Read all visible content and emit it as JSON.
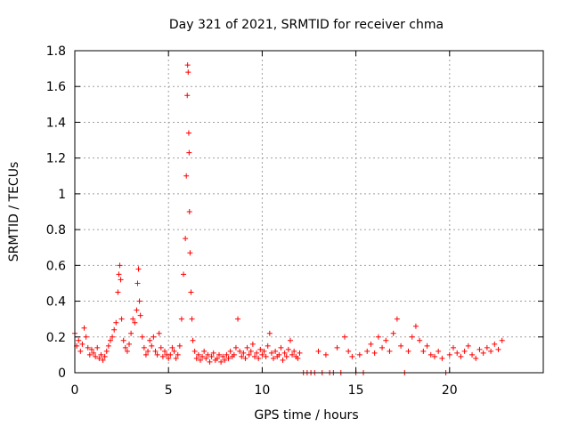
{
  "chart_data": {
    "type": "scatter",
    "title": "Day 321 of 2021, SRMTID for receiver chma",
    "xlabel": "GPS time / hours",
    "ylabel": "SRMTID / TECUs",
    "xlim": [
      0,
      25
    ],
    "ylim": [
      0,
      1.8
    ],
    "x_ticks": [
      0,
      5,
      10,
      15,
      20
    ],
    "x_tick_labels": [
      "0",
      "5",
      "10",
      "15",
      "20"
    ],
    "y_ticks": [
      0,
      0.2,
      0.4,
      0.6,
      0.8,
      1,
      1.2,
      1.4,
      1.6,
      1.8
    ],
    "y_tick_labels": [
      "0",
      "0.2",
      "0.4",
      "0.6",
      "0.8",
      "1",
      "1.2",
      "1.4",
      "1.6",
      "1.8"
    ],
    "grid": true,
    "marker": "+",
    "color": "#ff0000",
    "series": [
      {
        "name": "SRMTID",
        "x": [
          0.0,
          0.1,
          0.2,
          0.3,
          0.4,
          0.5,
          0.6,
          0.7,
          0.8,
          0.9,
          1.0,
          1.1,
          1.2,
          1.3,
          1.4,
          1.5,
          1.6,
          1.7,
          1.8,
          1.9,
          2.0,
          2.1,
          2.2,
          2.3,
          2.35,
          2.4,
          2.45,
          2.5,
          2.6,
          2.7,
          2.8,
          2.9,
          3.0,
          3.1,
          3.2,
          3.3,
          3.35,
          3.4,
          3.45,
          3.5,
          3.6,
          3.7,
          3.8,
          3.9,
          4.0,
          4.1,
          4.2,
          4.3,
          4.4,
          4.5,
          4.6,
          4.7,
          4.8,
          4.9,
          5.0,
          5.1,
          5.2,
          5.3,
          5.4,
          5.5,
          5.6,
          5.7,
          5.8,
          5.9,
          5.95,
          6.0,
          6.02,
          6.05,
          6.08,
          6.1,
          6.12,
          6.15,
          6.2,
          6.25,
          6.3,
          6.4,
          6.5,
          6.6,
          6.7,
          6.8,
          6.9,
          7.0,
          7.1,
          7.2,
          7.3,
          7.4,
          7.5,
          7.6,
          7.7,
          7.8,
          7.9,
          8.0,
          8.1,
          8.2,
          8.3,
          8.4,
          8.5,
          8.6,
          8.7,
          8.8,
          8.9,
          9.0,
          9.1,
          9.2,
          9.3,
          9.4,
          9.5,
          9.6,
          9.7,
          9.8,
          9.9,
          10.0,
          10.1,
          10.2,
          10.3,
          10.4,
          10.5,
          10.6,
          10.7,
          10.8,
          10.9,
          11.0,
          11.1,
          11.2,
          11.3,
          11.4,
          11.5,
          11.6,
          11.7,
          11.8,
          11.9,
          12.0,
          12.2,
          12.4,
          12.6,
          12.8,
          13.0,
          13.2,
          13.4,
          13.6,
          13.8,
          14.0,
          14.2,
          14.4,
          14.6,
          14.8,
          15.0,
          15.2,
          15.4,
          15.6,
          15.8,
          16.0,
          16.2,
          16.4,
          16.6,
          16.8,
          17.0,
          17.2,
          17.4,
          17.6,
          17.8,
          18.0,
          18.2,
          18.4,
          18.6,
          18.8,
          19.0,
          19.2,
          19.4,
          19.6,
          19.8,
          20.0,
          20.2,
          20.4,
          20.6,
          20.8,
          21.0,
          21.2,
          21.4,
          21.6,
          21.8,
          22.0,
          22.2,
          22.4,
          22.6,
          22.8
        ],
        "y": [
          0.22,
          0.15,
          0.18,
          0.12,
          0.16,
          0.25,
          0.2,
          0.14,
          0.1,
          0.13,
          0.11,
          0.09,
          0.14,
          0.08,
          0.1,
          0.07,
          0.09,
          0.12,
          0.15,
          0.18,
          0.2,
          0.24,
          0.28,
          0.45,
          0.55,
          0.6,
          0.52,
          0.3,
          0.18,
          0.14,
          0.12,
          0.16,
          0.22,
          0.3,
          0.28,
          0.35,
          0.5,
          0.58,
          0.4,
          0.32,
          0.2,
          0.14,
          0.1,
          0.12,
          0.18,
          0.15,
          0.2,
          0.12,
          0.1,
          0.22,
          0.14,
          0.09,
          0.12,
          0.1,
          0.08,
          0.1,
          0.14,
          0.12,
          0.08,
          0.1,
          0.15,
          0.3,
          0.55,
          0.75,
          1.1,
          1.55,
          1.72,
          1.68,
          1.34,
          1.23,
          0.9,
          0.67,
          0.45,
          0.3,
          0.18,
          0.12,
          0.08,
          0.1,
          0.07,
          0.09,
          0.12,
          0.08,
          0.1,
          0.06,
          0.09,
          0.11,
          0.07,
          0.08,
          0.1,
          0.06,
          0.09,
          0.07,
          0.1,
          0.08,
          0.12,
          0.09,
          0.1,
          0.14,
          0.3,
          0.12,
          0.09,
          0.11,
          0.08,
          0.14,
          0.1,
          0.12,
          0.16,
          0.09,
          0.11,
          0.08,
          0.13,
          0.1,
          0.12,
          0.09,
          0.15,
          0.22,
          0.11,
          0.08,
          0.12,
          0.09,
          0.1,
          0.14,
          0.07,
          0.11,
          0.09,
          0.13,
          0.18,
          0.1,
          0.12,
          0.09,
          0.08,
          0.11,
          0.0,
          0.0,
          0.0,
          0.0,
          0.12,
          0.0,
          0.1,
          0.0,
          0.0,
          0.14,
          0.0,
          0.2,
          0.12,
          0.09,
          0.0,
          0.1,
          0.0,
          0.12,
          0.16,
          0.11,
          0.2,
          0.14,
          0.18,
          0.12,
          0.22,
          0.3,
          0.15,
          0.0,
          0.12,
          0.2,
          0.26,
          0.18,
          0.12,
          0.15,
          0.1,
          0.09,
          0.12,
          0.08,
          0.0,
          0.1,
          0.14,
          0.11,
          0.09,
          0.12,
          0.15,
          0.1,
          0.08,
          0.13,
          0.11,
          0.14,
          0.12,
          0.16,
          0.13,
          0.18
        ]
      }
    ]
  }
}
